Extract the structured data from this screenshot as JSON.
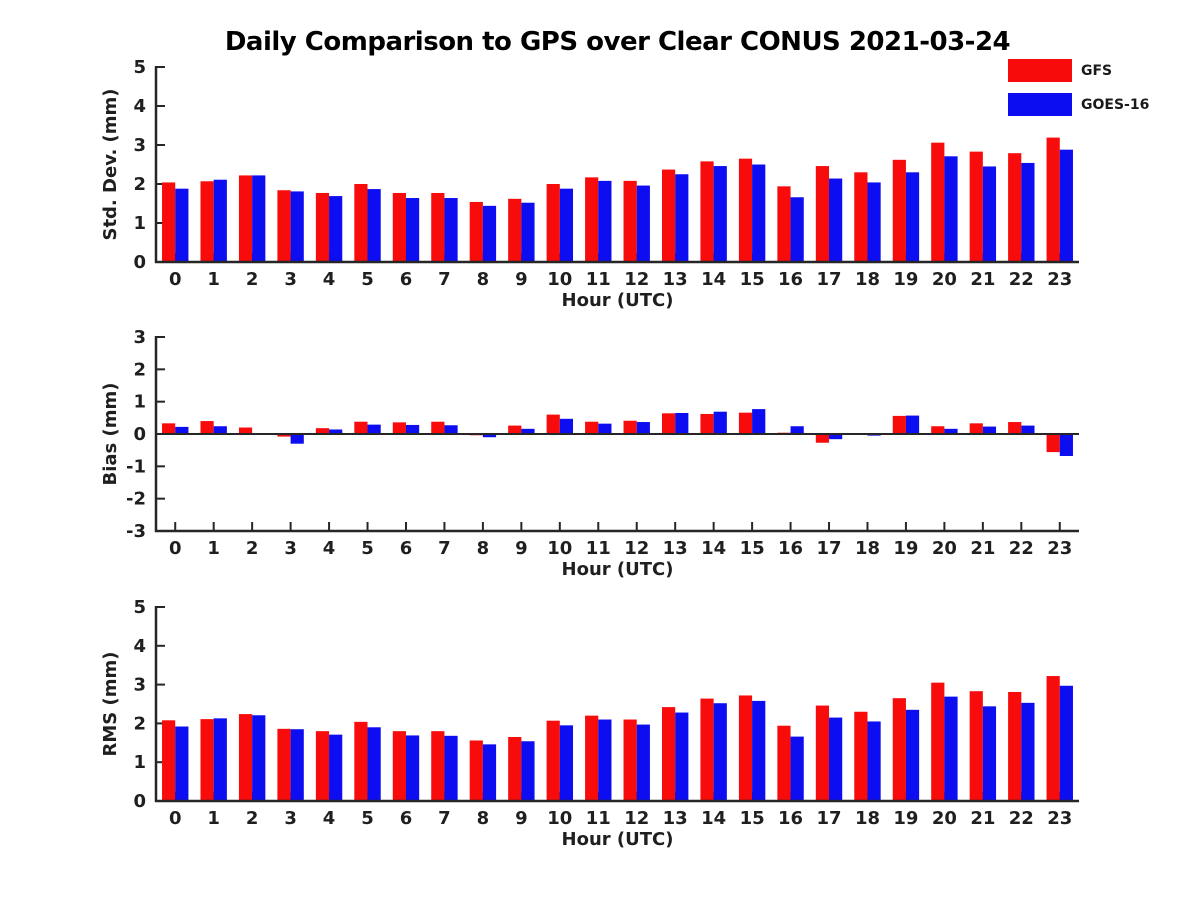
{
  "title": "Daily Comparison to GPS over Clear CONUS 2021-03-24",
  "legend": {
    "position": "top-right",
    "items": [
      {
        "label": "GFS",
        "color": "#f80b0b"
      },
      {
        "label": "GOES-16",
        "color": "#0d0df2"
      }
    ]
  },
  "chart_data": [
    {
      "type": "bar",
      "title": "",
      "ylabel": "Std. Dev. (mm)",
      "xlabel": "Hour (UTC)",
      "categories": [
        "0",
        "1",
        "2",
        "3",
        "4",
        "5",
        "6",
        "7",
        "8",
        "9",
        "10",
        "11",
        "12",
        "13",
        "14",
        "15",
        "16",
        "17",
        "18",
        "19",
        "20",
        "21",
        "22",
        "23"
      ],
      "ylim": [
        0,
        5
      ],
      "yticks": [
        0,
        1,
        2,
        3,
        4,
        5
      ],
      "grid": false,
      "series": [
        {
          "name": "GFS",
          "color": "#f80b0b",
          "values": [
            2.04,
            2.07,
            2.22,
            1.84,
            1.77,
            2.0,
            1.77,
            1.77,
            1.54,
            1.62,
            2.0,
            2.17,
            2.08,
            2.37,
            2.58,
            2.65,
            1.94,
            2.46,
            2.3,
            2.62,
            3.06,
            2.83,
            2.79,
            3.19
          ]
        },
        {
          "name": "GOES-16",
          "color": "#0d0df2",
          "values": [
            1.88,
            2.11,
            2.22,
            1.81,
            1.69,
            1.87,
            1.64,
            1.64,
            1.44,
            1.52,
            1.88,
            2.08,
            1.96,
            2.25,
            2.46,
            2.5,
            1.66,
            2.14,
            2.04,
            2.3,
            2.71,
            2.45,
            2.54,
            2.88
          ]
        }
      ]
    },
    {
      "type": "bar",
      "title": "",
      "ylabel": "Bias (mm)",
      "xlabel": "Hour (UTC)",
      "categories": [
        "0",
        "1",
        "2",
        "3",
        "4",
        "5",
        "6",
        "7",
        "8",
        "9",
        "10",
        "11",
        "12",
        "13",
        "14",
        "15",
        "16",
        "17",
        "18",
        "19",
        "20",
        "21",
        "22",
        "23"
      ],
      "ylim": [
        -3,
        3
      ],
      "yticks": [
        -3,
        -2,
        -1,
        0,
        1,
        2,
        3
      ],
      "grid": false,
      "series": [
        {
          "name": "GFS",
          "color": "#f80b0b",
          "values": [
            0.33,
            0.4,
            0.2,
            -0.08,
            0.18,
            0.38,
            0.36,
            0.38,
            -0.04,
            0.26,
            0.6,
            0.38,
            0.41,
            0.64,
            0.62,
            0.66,
            0.04,
            -0.27,
            -0.02,
            0.56,
            0.24,
            0.33,
            0.37,
            -0.56
          ]
        },
        {
          "name": "GOES-16",
          "color": "#0d0df2",
          "values": [
            0.22,
            0.24,
            0.02,
            -0.3,
            0.14,
            0.29,
            0.28,
            0.27,
            -0.1,
            0.16,
            0.47,
            0.32,
            0.37,
            0.65,
            0.69,
            0.77,
            0.24,
            -0.16,
            -0.05,
            0.57,
            0.16,
            0.23,
            0.26,
            -0.68
          ]
        }
      ]
    },
    {
      "type": "bar",
      "title": "",
      "ylabel": "RMS (mm)",
      "xlabel": "Hour (UTC)",
      "categories": [
        "0",
        "1",
        "2",
        "3",
        "4",
        "5",
        "6",
        "7",
        "8",
        "9",
        "10",
        "11",
        "12",
        "13",
        "14",
        "15",
        "16",
        "17",
        "18",
        "19",
        "20",
        "21",
        "22",
        "23"
      ],
      "ylim": [
        0,
        5
      ],
      "yticks": [
        0,
        1,
        2,
        3,
        4,
        5
      ],
      "grid": false,
      "series": [
        {
          "name": "GFS",
          "color": "#f80b0b",
          "values": [
            2.08,
            2.11,
            2.24,
            1.86,
            1.8,
            2.04,
            1.8,
            1.8,
            1.56,
            1.65,
            2.07,
            2.2,
            2.1,
            2.42,
            2.64,
            2.72,
            1.94,
            2.46,
            2.3,
            2.65,
            3.05,
            2.83,
            2.81,
            3.22
          ]
        },
        {
          "name": "GOES-16",
          "color": "#0d0df2",
          "values": [
            1.92,
            2.13,
            2.21,
            1.85,
            1.71,
            1.9,
            1.69,
            1.68,
            1.46,
            1.54,
            1.95,
            2.1,
            1.97,
            2.28,
            2.52,
            2.58,
            1.66,
            2.15,
            2.05,
            2.35,
            2.69,
            2.44,
            2.53,
            2.97
          ]
        }
      ]
    }
  ]
}
